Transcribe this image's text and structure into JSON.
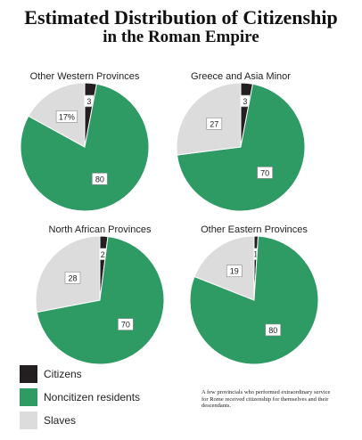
{
  "title_line1": "Estimated Distribution of Citizenship",
  "title_line2": "in the Roman Empire",
  "colors": {
    "citizens": "#231f20",
    "noncitizens": "#2e9a64",
    "slaves": "#dcdcdd"
  },
  "legend": [
    {
      "label": "Citizens",
      "color": "#231f20"
    },
    {
      "label": "Noncitizen residents",
      "color": "#2e9a64"
    },
    {
      "label": "Slaves",
      "color": "#dcdcdd"
    }
  ],
  "note": "A few provincials who performed extraordinary service for Rome received citizenship for themselves and their descendants.",
  "chart_data": [
    {
      "type": "pie",
      "title": "Other Western Provinces",
      "series": [
        {
          "name": "Citizens",
          "value": 3,
          "label": "3"
        },
        {
          "name": "Noncitizen residents",
          "value": 80,
          "label": "80"
        },
        {
          "name": "Slaves",
          "value": 17,
          "label": "17%"
        }
      ]
    },
    {
      "type": "pie",
      "title": "Greece and Asia Minor",
      "series": [
        {
          "name": "Citizens",
          "value": 3,
          "label": "3"
        },
        {
          "name": "Noncitizen residents",
          "value": 70,
          "label": "70"
        },
        {
          "name": "Slaves",
          "value": 27,
          "label": "27"
        }
      ]
    },
    {
      "type": "pie",
      "title": "North African Provinces",
      "series": [
        {
          "name": "Citizens",
          "value": 2,
          "label": "2"
        },
        {
          "name": "Noncitizen residents",
          "value": 70,
          "label": "70"
        },
        {
          "name": "Slaves",
          "value": 28,
          "label": "28"
        }
      ]
    },
    {
      "type": "pie",
      "title": "Other Eastern Provinces",
      "series": [
        {
          "name": "Citizens",
          "value": 1,
          "label": "1"
        },
        {
          "name": "Noncitizen residents",
          "value": 80,
          "label": "80"
        },
        {
          "name": "Slaves",
          "value": 19,
          "label": "19"
        }
      ]
    }
  ]
}
